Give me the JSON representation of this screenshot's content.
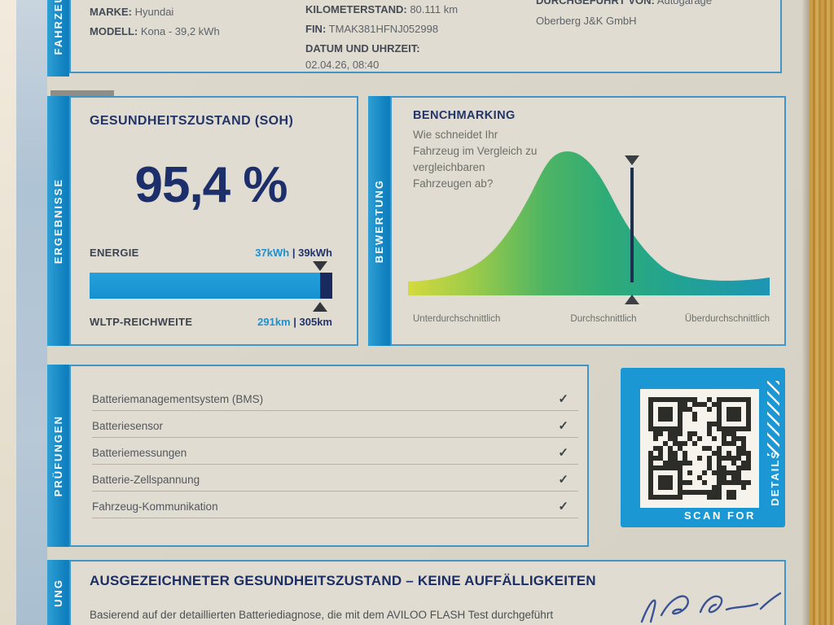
{
  "colors": {
    "accent_blue": "#1b98d4",
    "navy": "#1d2f6b",
    "bar_blue": "#1a96d3",
    "bar_navy": "#1b2a5e",
    "panel_border": "#4295c7",
    "curve_gradient": [
      "#d4da3d",
      "#8cc74b",
      "#3fae62",
      "#2aa887",
      "#1d95b4"
    ]
  },
  "vehicle": {
    "tab": "FAHRZEUG",
    "fields": [
      {
        "label": "MARKE:",
        "value": "Hyundai"
      },
      {
        "label": "MODELL:",
        "value": "Kona - 39,2 kWh"
      },
      {
        "label": "KILOMETERSTAND:",
        "value": "80.111 km"
      },
      {
        "label": "FIN:",
        "value": "TMAK381HFNJ052998"
      },
      {
        "label": "DATUM UND UHRZEIT:",
        "value": "02.04.26, 08:40"
      },
      {
        "label": "DURCHGEFÜHRT VON:",
        "value": "Autogarage"
      }
    ],
    "company_line2": "Oberberg J&K GmbH"
  },
  "results": {
    "tab": "ERGEBNISSE",
    "soh_title": "GESUNDHEITSZUSTAND (SOH)",
    "soh_value": "95,4 %",
    "energy_label": "ENERGIE",
    "energy_current": "37kWh",
    "divider": "|",
    "energy_total": "39kWh",
    "range_label": "WLTP-REICHWEITE",
    "range_current": "291km",
    "range_total": "305km",
    "bar_fill_pct": 94.9
  },
  "benchmark": {
    "tab": "BEWERTUNG",
    "title": "BENCHMARKING",
    "question": "Wie schneidet Ihr\nFahrzeug im Vergleich zu\nvergleichbaren\nFahrzeugen ab?",
    "axis_labels": [
      "Unterdurchschnittlich",
      "Durchschnittlich",
      "Überdurchschnittlich"
    ],
    "marker_pct": 62
  },
  "checks": {
    "tab": "PRÜFUNGEN",
    "items": [
      {
        "label": "Batteriemanagementsystem (BMS)",
        "status": "✓"
      },
      {
        "label": "Batteriesensor",
        "status": "✓"
      },
      {
        "label": "Batteriemessungen",
        "status": "✓"
      },
      {
        "label": "Batterie-Zellspannung",
        "status": "✓"
      },
      {
        "label": "Fahrzeug-Kommunikation",
        "status": "✓"
      }
    ]
  },
  "qr": {
    "scan_for": "SCAN FOR",
    "details": "DETAILS"
  },
  "summary": {
    "tab_visible": "UNG",
    "title": "AUSGEZEICHNETER GESUNDHEITSZUSTAND – KEINE AUFFÄLLIGKEITEN",
    "body": "Basierend auf der detaillierten Batteriediagnose, die mit dem AVILOO FLASH Test durchgeführt"
  },
  "chart_data": [
    {
      "type": "area",
      "title": "BENCHMARKING",
      "subtitle": "Wie schneidet Ihr Fahrzeug im Vergleich zu vergleichbaren Fahrzeugen ab?",
      "description": "Bell-curve (normal distribution) of comparable vehicle health; dark vertical marker shows this vehicle's position",
      "x_tick_labels": [
        "Unterdurchschnittlich",
        "Durchschnittlich",
        "Überdurchschnittlich"
      ],
      "marker_position_pct": 62,
      "marker_zone": "Durchschnittlich (slightly above average)",
      "grid": false,
      "legend": false
    },
    {
      "type": "bar",
      "title": "ENERGIE / WLTP-REICHWEITE",
      "series": [
        {
          "name": "ENERGIE",
          "current": 37,
          "max": 39,
          "unit": "kWh"
        },
        {
          "name": "WLTP-REICHWEITE",
          "current": 291,
          "max": 305,
          "unit": "km"
        }
      ],
      "fill_pct": 94.9
    }
  ]
}
